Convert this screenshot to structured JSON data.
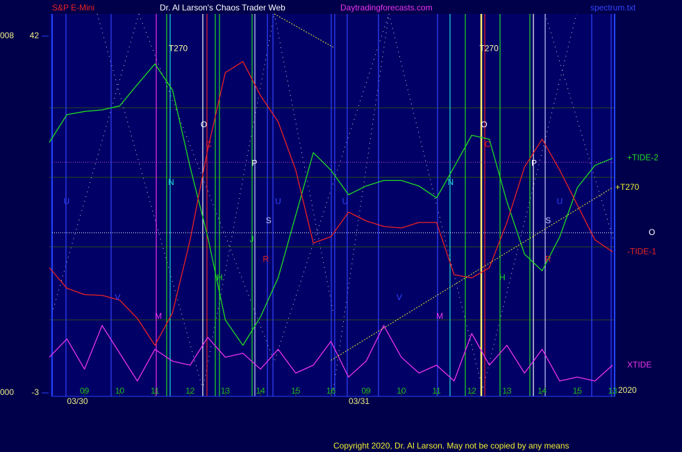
{
  "header": {
    "symbol": "S&P E-Mini",
    "site": "Dr. Al Larson's Chaos Trader Web",
    "url": "Daytradingforecasts.com",
    "file": "spectrum.txt"
  },
  "footer": "Copyright 2020, Dr. Al Larson. May not be copied by any means",
  "chart_data": {
    "type": "line",
    "x": [
      0,
      0.5,
      1,
      1.5,
      2,
      2.5,
      3,
      3.5,
      4,
      4.5,
      5,
      5.5,
      6,
      6.5,
      7,
      7.5,
      8,
      8.5,
      9,
      9.5,
      10,
      10.5,
      11,
      11.5,
      12,
      12.5,
      13,
      13.5,
      14,
      14.5,
      15,
      15.5,
      16
    ],
    "series": [
      {
        "name": "+TIDE-2",
        "color": "#22dd22",
        "values": [
          28.6,
          32.1,
          32.5,
          32.7,
          33.2,
          35.9,
          38.5,
          35.2,
          25.5,
          16.7,
          6.2,
          3.0,
          6.6,
          11.5,
          19.4,
          27.3,
          25.1,
          22.0,
          23.1,
          23.8,
          23.8,
          23.1,
          21.6,
          25.5,
          29.5,
          29.0,
          21.1,
          14.5,
          12.4,
          16.7,
          22.9,
          25.7,
          26.6
        ]
      },
      {
        "name": "-TIDE-1",
        "color": "#ee2222",
        "values": [
          12.8,
          10.2,
          9.4,
          9.3,
          8.7,
          6.4,
          3.0,
          7.1,
          16.3,
          27.7,
          37.4,
          38.8,
          34.5,
          31.2,
          25.1,
          15.9,
          16.7,
          19.8,
          18.7,
          18.0,
          17.8,
          18.5,
          18.5,
          11.9,
          11.5,
          12.8,
          18.5,
          25.5,
          29.0,
          25.1,
          20.7,
          16.3,
          14.8
        ]
      },
      {
        "name": "XTIDE",
        "color": "#ee33ee",
        "values": [
          1.5,
          3.8,
          0.0,
          5.5,
          2.0,
          -1.5,
          2.5,
          1.0,
          0.5,
          4.0,
          1.5,
          2.0,
          0.0,
          2.5,
          -0.5,
          0.5,
          3.5,
          -1.0,
          1.0,
          5.5,
          1.5,
          -0.5,
          0.5,
          -1.5,
          4.5,
          0.5,
          3.0,
          -0.5,
          2.5,
          -1.5,
          -1.0,
          -1.5,
          0.5
        ]
      }
    ],
    "trend": {
      "name": "+T270",
      "color": "#eeee33",
      "x": [
        8,
        16
      ],
      "values": [
        1.1,
        22.9
      ]
    },
    "levels": [
      {
        "value": 26.1,
        "color": "#cc44cc"
      },
      {
        "name": "O",
        "value": 17.2,
        "color": "#ffffff"
      }
    ],
    "year_label": "2020",
    "side_labels": [
      "008",
      "000"
    ],
    "xlim": [
      0,
      16
    ],
    "ylim": [
      -3,
      42
    ],
    "yticks": [
      42,
      -3
    ],
    "xticks": [
      {
        "value": 1,
        "label": "09"
      },
      {
        "value": 2,
        "label": "10"
      },
      {
        "value": 3,
        "label": "11"
      },
      {
        "value": 4,
        "label": "12"
      },
      {
        "value": 5,
        "label": "13"
      },
      {
        "value": 6,
        "label": "14"
      },
      {
        "value": 7,
        "label": "15"
      },
      {
        "value": 8,
        "label": "16"
      },
      {
        "value": 9,
        "label": "09"
      },
      {
        "value": 10,
        "label": "10"
      },
      {
        "value": 11,
        "label": "11"
      },
      {
        "value": 12,
        "label": "12"
      },
      {
        "value": 13,
        "label": "13"
      },
      {
        "value": 14,
        "label": "14"
      },
      {
        "value": 15,
        "label": "15"
      },
      {
        "value": 16,
        "label": "13"
      }
    ],
    "date_labels": [
      {
        "value": 0.8,
        "label": "03/30"
      },
      {
        "value": 8.8,
        "label": "03/31"
      }
    ],
    "annotations": [
      {
        "text": "T270",
        "x": 3.66,
        "y": 40.4,
        "color": "#ffffaa"
      },
      {
        "text": "T270",
        "x": 12.49,
        "y": 40.4,
        "color": "#ffffaa"
      },
      {
        "text": "O",
        "x": 4.39,
        "y": 30.8,
        "color": "#ffffff"
      },
      {
        "text": "C",
        "x": 4.53,
        "y": 28.3,
        "color": "#ee2222"
      },
      {
        "text": "P",
        "x": 5.83,
        "y": 25.9,
        "color": "#ffffff"
      },
      {
        "text": "N",
        "x": 3.46,
        "y": 23.5,
        "color": "#22dddd"
      },
      {
        "text": "U",
        "x": 0.49,
        "y": 21.1,
        "color": "#3344ff"
      },
      {
        "text": "U",
        "x": 6.5,
        "y": 21.1,
        "color": "#3344ff"
      },
      {
        "text": "S",
        "x": 6.23,
        "y": 18.7,
        "color": "#ccccff"
      },
      {
        "text": "J",
        "x": 5.75,
        "y": 16.3,
        "color": "#22dd22"
      },
      {
        "text": "R",
        "x": 6.15,
        "y": 13.8,
        "color": "#ee2222"
      },
      {
        "text": "H",
        "x": 4.84,
        "y": 11.5,
        "color": "#22dd22"
      },
      {
        "text": "V",
        "x": 1.94,
        "y": 9.0,
        "color": "#3344ff"
      },
      {
        "text": "M",
        "x": 3.1,
        "y": 6.6,
        "color": "#ee33ee"
      },
      {
        "text": "U",
        "x": 8.4,
        "y": 21.1,
        "color": "#3344ff"
      },
      {
        "text": "N",
        "x": 11.4,
        "y": 23.5,
        "color": "#22dddd"
      },
      {
        "text": "O",
        "x": 12.35,
        "y": 30.8,
        "color": "#ffffff"
      },
      {
        "text": "C",
        "x": 12.45,
        "y": 28.3,
        "color": "#ee2222"
      },
      {
        "text": "P",
        "x": 13.77,
        "y": 25.9,
        "color": "#ffffff"
      },
      {
        "text": "U",
        "x": 14.5,
        "y": 21.1,
        "color": "#3344ff"
      },
      {
        "text": "S",
        "x": 14.17,
        "y": 18.7,
        "color": "#ccccff"
      },
      {
        "text": "R",
        "x": 14.17,
        "y": 13.8,
        "color": "#ee2222"
      },
      {
        "text": "H",
        "x": 12.87,
        "y": 11.5,
        "color": "#22dd22"
      },
      {
        "text": "V",
        "x": 9.94,
        "y": 9.0,
        "color": "#3344ff"
      },
      {
        "text": "M",
        "x": 11.09,
        "y": 6.6,
        "color": "#ee33ee"
      }
    ]
  }
}
